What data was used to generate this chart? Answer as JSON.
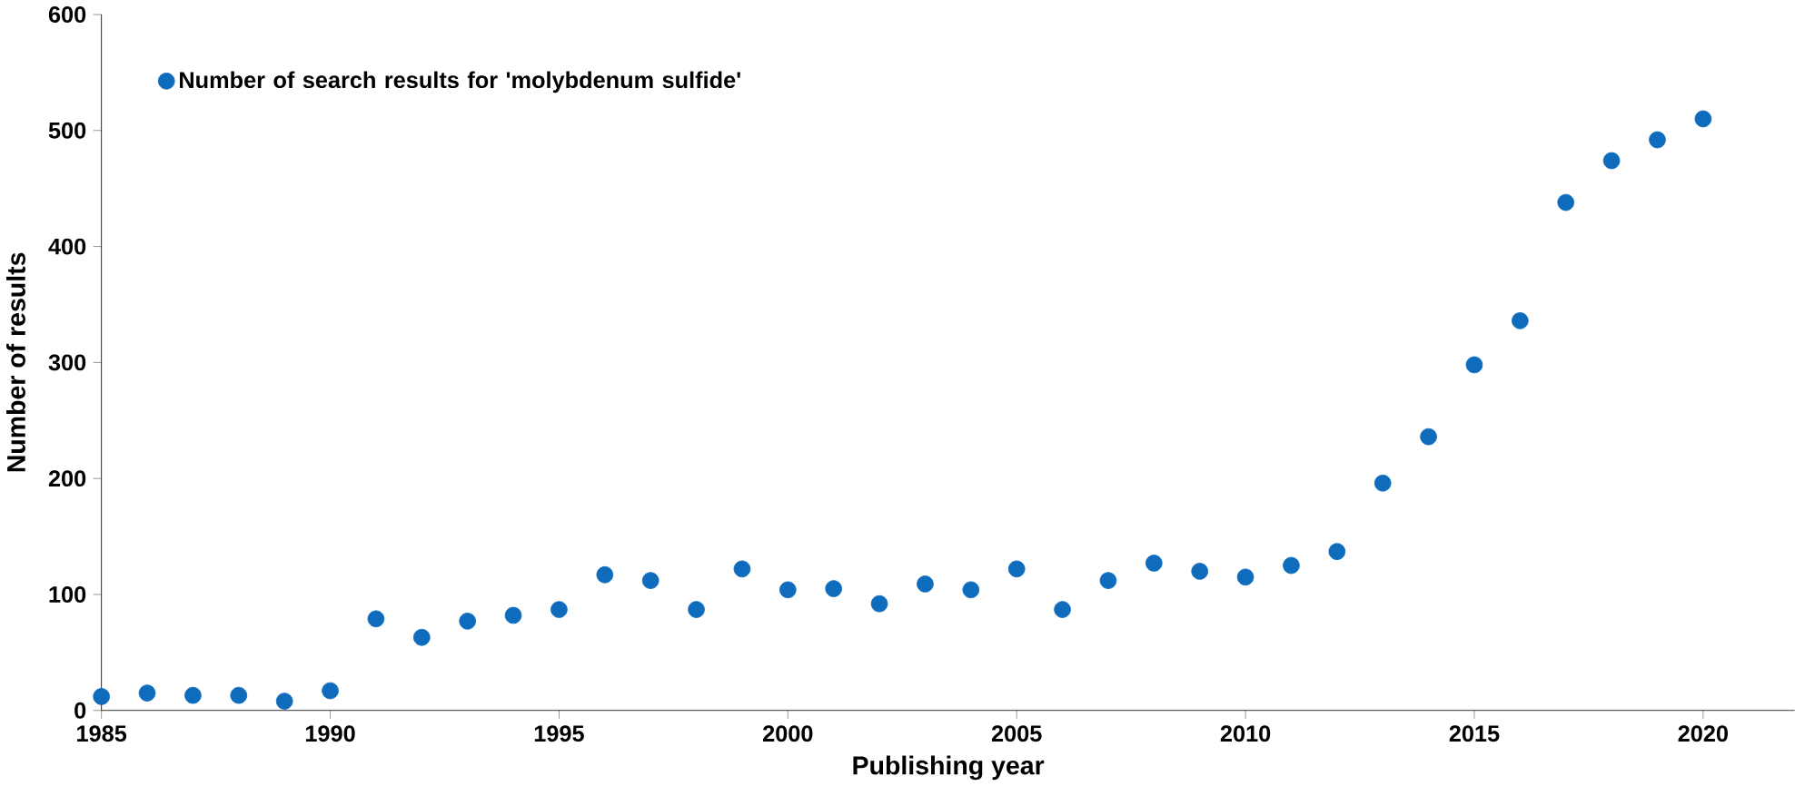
{
  "chart_data": {
    "type": "scatter",
    "xlabel": "Publishing year",
    "ylabel": "Number of results",
    "x": [
      1985,
      1986,
      1987,
      1988,
      1989,
      1990,
      1991,
      1992,
      1993,
      1994,
      1995,
      1996,
      1997,
      1998,
      1999,
      2000,
      2001,
      2002,
      2003,
      2004,
      2005,
      2006,
      2007,
      2008,
      2009,
      2010,
      2011,
      2012,
      2013,
      2014,
      2015,
      2016,
      2017,
      2018,
      2019,
      2020
    ],
    "series": [
      {
        "name": "Number of search results for 'molybdenum sulfide'",
        "color": "#0f6cbd",
        "values": [
          12,
          15,
          13,
          13,
          8,
          17,
          79,
          63,
          77,
          82,
          87,
          117,
          112,
          87,
          122,
          104,
          105,
          92,
          109,
          104,
          122,
          87,
          112,
          127,
          120,
          115,
          125,
          137,
          196,
          236,
          298,
          336,
          438,
          474,
          492,
          510
        ]
      }
    ],
    "xlim": [
      1985,
      2022
    ],
    "xticks": [
      1985,
      1990,
      1995,
      2000,
      2005,
      2010,
      2015,
      2020
    ],
    "ylim": [
      0,
      600
    ],
    "yticks": [
      0,
      100,
      200,
      300,
      400,
      500,
      600
    ],
    "legend": "top left",
    "grid": false
  }
}
